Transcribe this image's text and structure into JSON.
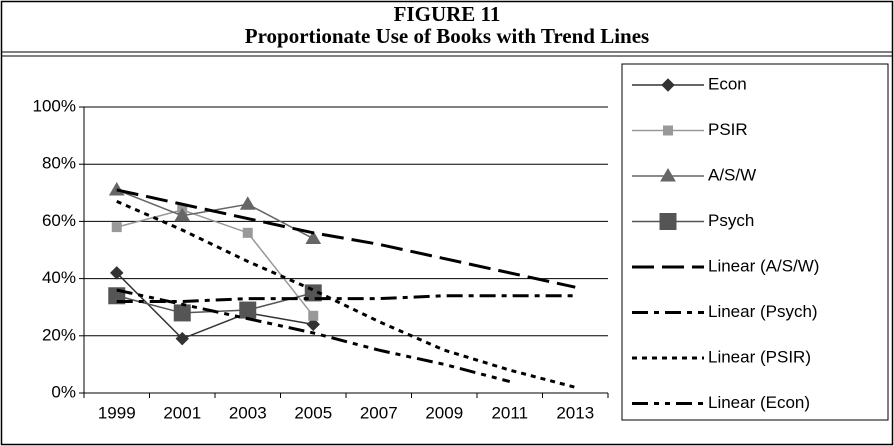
{
  "chart_data": {
    "type": "line",
    "figure": "FIGURE 11",
    "title": "Proportionate Use of Books with Trend Lines",
    "categories": [
      "1999",
      "2001",
      "2003",
      "2005",
      "2007",
      "2009",
      "2011",
      "2013"
    ],
    "ylim": [
      0,
      100
    ],
    "yticks": [
      {
        "value": 0,
        "label": "0%"
      },
      {
        "value": 20,
        "label": "20%"
      },
      {
        "value": 40,
        "label": "40%"
      },
      {
        "value": 60,
        "label": "60%"
      },
      {
        "value": 80,
        "label": "80%"
      },
      {
        "value": 100,
        "label": "100%"
      }
    ],
    "grid": true,
    "legend": "right",
    "series": [
      {
        "name": "Econ",
        "color": "#333333",
        "marker": "diamond",
        "dash": "solid",
        "values": [
          42,
          19,
          28,
          24,
          null,
          null,
          null,
          null
        ]
      },
      {
        "name": "PSIR",
        "color": "#999999",
        "marker": "square",
        "dash": "solid",
        "values": [
          58,
          64,
          56,
          27,
          null,
          null,
          null,
          null
        ]
      },
      {
        "name": "A/S/W",
        "color": "#666666",
        "marker": "triangle",
        "dash": "solid",
        "values": [
          71,
          62,
          66,
          54,
          null,
          null,
          null,
          null
        ]
      },
      {
        "name": "Psych",
        "color": "#555555",
        "marker": "bigsquare",
        "dash": "solid",
        "values": [
          34,
          28,
          29,
          35,
          null,
          null,
          null,
          null
        ]
      },
      {
        "name": "Linear (A/S/W)",
        "color": "#000000",
        "marker": "none",
        "dash": "longdash",
        "values": [
          71,
          66,
          61,
          56,
          52,
          47,
          42,
          37
        ]
      },
      {
        "name": "Linear (Psych)",
        "color": "#000000",
        "marker": "none",
        "dash": "dashdot",
        "values": [
          32,
          32,
          33,
          33,
          33,
          34,
          34,
          34
        ]
      },
      {
        "name": "Linear (PSIR)",
        "color": "#000000",
        "marker": "none",
        "dash": "dot",
        "values": [
          67,
          57,
          46,
          36,
          25,
          15,
          8,
          2
        ]
      },
      {
        "name": "Linear (Econ)",
        "color": "#000000",
        "marker": "none",
        "dash": "dashdotdot",
        "values": [
          36,
          31,
          26,
          21,
          15,
          10,
          4,
          null
        ]
      }
    ]
  }
}
